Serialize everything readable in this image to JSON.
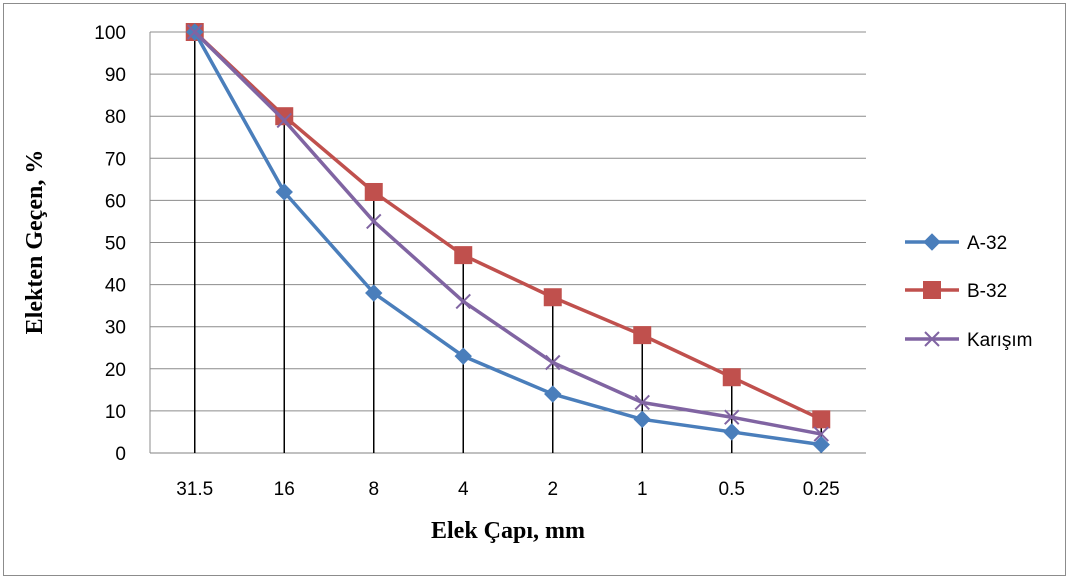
{
  "chart_data": {
    "type": "line",
    "categories": [
      "31.5",
      "16",
      "8",
      "4",
      "2",
      "1",
      "0.5",
      "0.25"
    ],
    "xlabel": "Elek Çapı, mm",
    "ylabel": "Elekten Geçen, %",
    "ylim": [
      0,
      100
    ],
    "yticks": [
      "0",
      "10",
      "20",
      "30",
      "40",
      "50",
      "60",
      "70",
      "80",
      "90",
      "100"
    ],
    "grid": true,
    "legend_position": "right",
    "series": [
      {
        "name": "A-32",
        "color": "#4a7ebb",
        "marker": "diamond",
        "values": [
          100,
          62,
          38,
          23,
          14,
          8,
          5,
          2
        ]
      },
      {
        "name": "B-32",
        "color": "#c0504d",
        "marker": "square",
        "values": [
          100,
          80,
          62,
          47,
          37,
          28,
          18,
          8
        ]
      },
      {
        "name": "Karışım",
        "color": "#8064a2",
        "marker": "x",
        "values": [
          100,
          79,
          55,
          36,
          21.5,
          12,
          8.5,
          4.5
        ]
      }
    ]
  }
}
